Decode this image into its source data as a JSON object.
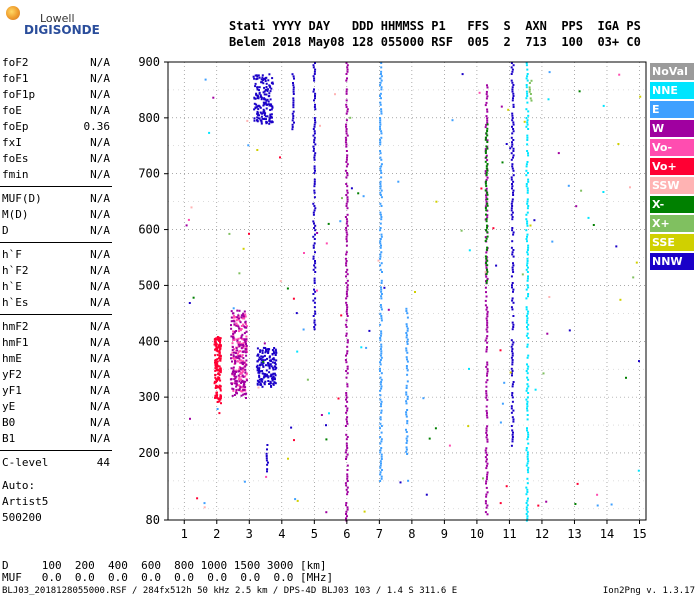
{
  "logo": {
    "line1": "Lowell",
    "line2": "DIGISONDE"
  },
  "header": {
    "line1": "Stati YYYY DAY   DDD HHMMSS P1   FFS  S  AXN  PPS  IGA PS",
    "line2": "Belem 2018 May08 128 055000 RSF  005  2  713  100  03+ C0"
  },
  "params": [
    {
      "name": "foF2",
      "value": "N/A"
    },
    {
      "name": "foF1",
      "value": "N/A"
    },
    {
      "name": "foF1p",
      "value": "N/A"
    },
    {
      "name": "foE",
      "value": "N/A"
    },
    {
      "name": "foEp",
      "value": "0.36"
    },
    {
      "name": "fxI",
      "value": "N/A"
    },
    {
      "name": "foEs",
      "value": "N/A"
    },
    {
      "name": "fmin",
      "value": "N/A"
    },
    {
      "name": "MUF(D)",
      "value": "N/A"
    },
    {
      "name": "M(D)",
      "value": "N/A"
    },
    {
      "name": "D",
      "value": "N/A"
    },
    {
      "name": "h`F",
      "value": "N/A"
    },
    {
      "name": "h`F2",
      "value": "N/A"
    },
    {
      "name": "h`E",
      "value": "N/A"
    },
    {
      "name": "h`Es",
      "value": "N/A"
    },
    {
      "name": "hmF2",
      "value": "N/A"
    },
    {
      "name": "hmF1",
      "value": "N/A"
    },
    {
      "name": "hmE",
      "value": "N/A"
    },
    {
      "name": "yF2",
      "value": "N/A"
    },
    {
      "name": "yF1",
      "value": "N/A"
    },
    {
      "name": "yE",
      "value": "N/A"
    },
    {
      "name": "B0",
      "value": "N/A"
    },
    {
      "name": "B1",
      "value": "N/A"
    },
    {
      "name": "C-level",
      "value": "44"
    }
  ],
  "autoscale": {
    "line1": "Auto:",
    "line2": "Artist5",
    "line3": "500200"
  },
  "bottom_table": {
    "d_line": "D     100  200  400  600  800 1000 1500 3000 [km]",
    "muf_line": "MUF   0.0  0.0  0.0  0.0  0.0  0.0  0.0  0.0 [MHz]"
  },
  "footer": {
    "left": "BLJ03_2018128055000.RSF / 284fx512h 50 kHz 2.5 km / DPS-4D BLJ03 103 / 1.4 S 311.6 E",
    "right": "Ion2Png v. 1.3.17"
  },
  "legend": [
    {
      "label": "NoVal",
      "color": "#9b9b9b"
    },
    {
      "label": "NNE",
      "color": "#00e5ff"
    },
    {
      "label": "E",
      "color": "#3fa0ff"
    },
    {
      "label": "W",
      "color": "#a000a0"
    },
    {
      "label": "Vo-",
      "color": "#ff4db0"
    },
    {
      "label": "Vo+",
      "color": "#ff0033"
    },
    {
      "label": "SSW",
      "color": "#ffb3b3"
    },
    {
      "label": "X-",
      "color": "#008000"
    },
    {
      "label": "X+",
      "color": "#80c060"
    },
    {
      "label": "SSE",
      "color": "#d0d000"
    },
    {
      "label": "NNW",
      "color": "#1a00c8"
    }
  ],
  "chart_data": {
    "type": "scatter",
    "x_ticks": [
      1,
      2,
      3,
      4,
      5,
      6,
      7,
      8,
      9,
      10,
      11,
      12,
      13,
      14,
      15
    ],
    "y_ticks": [
      80,
      200,
      300,
      400,
      500,
      600,
      700,
      800,
      900
    ],
    "xlim": [
      0.5,
      15.2
    ],
    "ylim": [
      80,
      900
    ],
    "grid": true,
    "legend_position": "right",
    "echo_traces": [
      {
        "name": "W",
        "color": "#a000a0",
        "x": 6.0,
        "y": [
          80,
          900
        ]
      },
      {
        "name": "NNE",
        "color": "#00e5ff",
        "x": 11.55,
        "y": [
          80,
          900
        ]
      },
      {
        "name": "E",
        "color": "#3fa0ff",
        "x": 7.05,
        "y": [
          150,
          900
        ]
      },
      {
        "name": "E",
        "color": "#3fa0ff",
        "x": 7.85,
        "y": [
          200,
          460
        ]
      },
      {
        "name": "W",
        "color": "#a000a0",
        "x": 10.3,
        "y": [
          90,
          860
        ]
      },
      {
        "name": "X-",
        "color": "#008000",
        "x": 10.3,
        "y": [
          500,
          790
        ]
      },
      {
        "name": "NNW",
        "color": "#1a00c8",
        "x": 11.1,
        "y": [
          200,
          900
        ]
      },
      {
        "name": "NNW",
        "color": "#1a00c8",
        "x": 4.35,
        "y": [
          780,
          880
        ]
      },
      {
        "name": "NNW",
        "color": "#1a00c8",
        "x": 5.0,
        "y": [
          420,
          900
        ]
      },
      {
        "name": "NNW",
        "color": "#1a00c8",
        "x": 3.55,
        "y": [
          160,
          220
        ]
      },
      {
        "name": "X+",
        "color": "#80c060",
        "x": 11.65,
        "y": [
          830,
          880
        ]
      }
    ],
    "clusters": [
      {
        "name": "Vo+",
        "color": "#ff0033",
        "x": [
          1.9,
          2.1
        ],
        "y": [
          290,
          410
        ]
      },
      {
        "name": "Vo-",
        "color": "#ff4db0",
        "x": [
          2.45,
          2.9
        ],
        "y": [
          310,
          450
        ]
      },
      {
        "name": "W",
        "color": "#a000a0",
        "x": [
          2.4,
          2.9
        ],
        "y": [
          300,
          460
        ]
      },
      {
        "name": "NNW",
        "color": "#1a00c8",
        "x": [
          3.2,
          3.8
        ],
        "y": [
          320,
          390
        ]
      },
      {
        "name": "NNW",
        "color": "#1a00c8",
        "x": [
          3.1,
          3.7
        ],
        "y": [
          790,
          880
        ]
      }
    ]
  }
}
